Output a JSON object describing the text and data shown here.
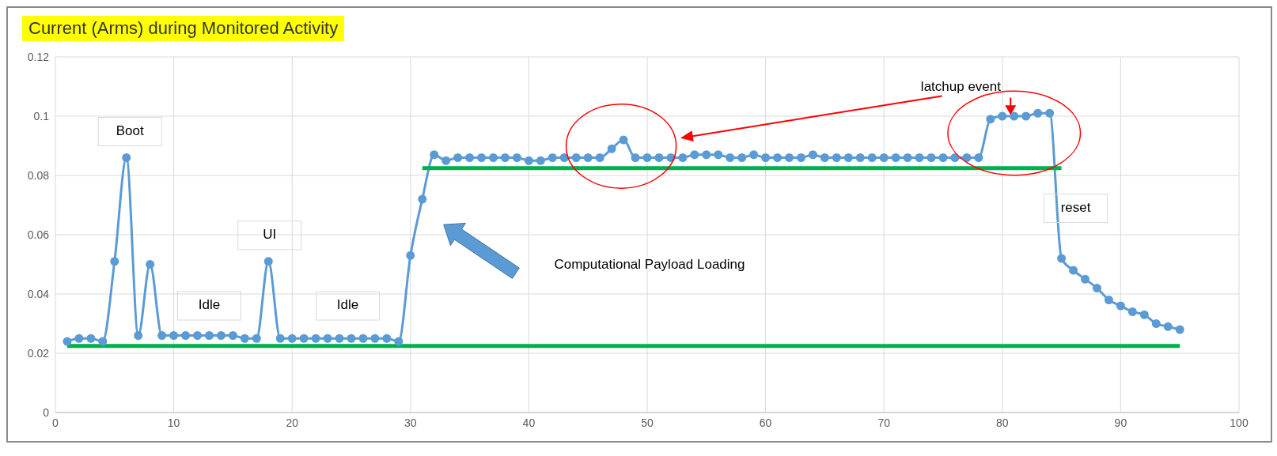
{
  "chart_data": {
    "type": "line",
    "title": "Current (Arms) during Monitored Activity",
    "xlim": [
      0,
      100
    ],
    "xticks": [
      0,
      10,
      20,
      30,
      40,
      50,
      60,
      70,
      80,
      90,
      100
    ],
    "ylim": [
      0,
      0.12
    ],
    "yticks": [
      0,
      0.02,
      0.04,
      0.06,
      0.08,
      0.1,
      0.12
    ],
    "grid": true,
    "marker": "circle",
    "series": [
      {
        "color": "#5b9bd5",
        "x": [
          1,
          2,
          3,
          4,
          5,
          6,
          7,
          8,
          9,
          10,
          11,
          12,
          13,
          14,
          15,
          16,
          17,
          18,
          19,
          20,
          21,
          22,
          23,
          24,
          25,
          26,
          27,
          28,
          29,
          30,
          31,
          32,
          33,
          34,
          35,
          36,
          37,
          38,
          39,
          40,
          41,
          42,
          43,
          44,
          45,
          46,
          47,
          48,
          49,
          50,
          51,
          52,
          53,
          54,
          55,
          56,
          57,
          58,
          59,
          60,
          61,
          62,
          63,
          64,
          65,
          66,
          67,
          68,
          69,
          70,
          71,
          72,
          73,
          74,
          75,
          76,
          77,
          78,
          79,
          80,
          81,
          82,
          83,
          84,
          85,
          86,
          87,
          88,
          89,
          90,
          91,
          92,
          93,
          94,
          95
        ],
        "values": [
          0.024,
          0.025,
          0.025,
          0.024,
          0.051,
          0.086,
          0.026,
          0.05,
          0.026,
          0.026,
          0.026,
          0.026,
          0.026,
          0.026,
          0.026,
          0.025,
          0.025,
          0.051,
          0.025,
          0.025,
          0.025,
          0.025,
          0.025,
          0.025,
          0.025,
          0.025,
          0.025,
          0.025,
          0.024,
          0.053,
          0.072,
          0.087,
          0.085,
          0.086,
          0.086,
          0.086,
          0.086,
          0.086,
          0.086,
          0.085,
          0.085,
          0.086,
          0.086,
          0.086,
          0.086,
          0.086,
          0.089,
          0.092,
          0.086,
          0.086,
          0.086,
          0.086,
          0.086,
          0.087,
          0.087,
          0.087,
          0.086,
          0.086,
          0.087,
          0.086,
          0.086,
          0.086,
          0.086,
          0.087,
          0.086,
          0.086,
          0.086,
          0.086,
          0.086,
          0.086,
          0.086,
          0.086,
          0.086,
          0.086,
          0.086,
          0.086,
          0.086,
          0.086,
          0.099,
          0.1,
          0.1,
          0.1,
          0.101,
          0.101,
          0.052,
          0.048,
          0.045,
          0.042,
          0.038,
          0.036,
          0.034,
          0.033,
          0.03,
          0.029,
          0.028
        ]
      },
      {
        "color": "#00b050",
        "marker": "none",
        "x": [
          1,
          95
        ],
        "values": [
          0.0225,
          0.0225
        ]
      },
      {
        "color": "#00b050",
        "marker": "none",
        "x": [
          31,
          85
        ],
        "values": [
          0.0825,
          0.0825
        ]
      }
    ],
    "annotations": [
      "Boot",
      "Idle",
      "UI",
      "Idle",
      "Computational Payload Loading",
      "latchup  event",
      "reset"
    ]
  }
}
